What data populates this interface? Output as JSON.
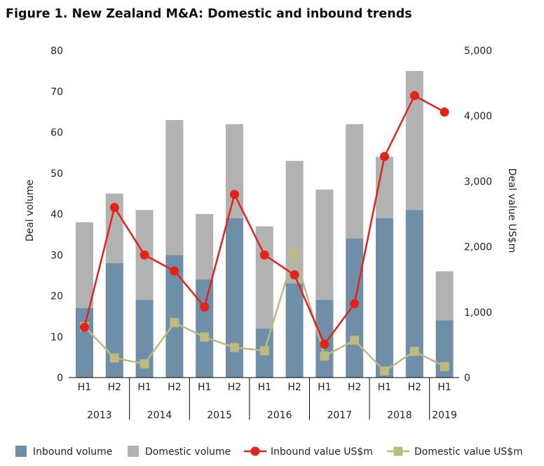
{
  "chart_data": {
    "type": "bar",
    "title": "Figure 1. New Zealand M&A: Domestic and inbound trends",
    "ylabel": "Deal volume",
    "y2label": "Deal value US$m",
    "ylim": [
      0,
      80
    ],
    "y2lim": [
      0,
      5000
    ],
    "yticks": [
      "0",
      "10",
      "20",
      "30",
      "40",
      "50",
      "60",
      "70",
      "80"
    ],
    "y2ticks": [
      "0",
      "1,000",
      "2,000",
      "3,000",
      "4,000",
      "5,000"
    ],
    "categories": [
      "H1",
      "H2",
      "H1",
      "H2",
      "H1",
      "H2",
      "H1",
      "H2",
      "H1",
      "H2",
      "H1",
      "H2",
      "H1"
    ],
    "years": [
      "2013",
      "2014",
      "2015",
      "2016",
      "2017",
      "2018",
      "2019"
    ],
    "series": [
      {
        "name": "Inbound volume",
        "type": "bar",
        "color": "#6f8fa8",
        "values": [
          17,
          28,
          19,
          30,
          24,
          39,
          12,
          23,
          19,
          34,
          39,
          41,
          14
        ]
      },
      {
        "name": "Domestic volume",
        "type": "bar-stacked",
        "color": "#b2b2b2",
        "values": [
          21,
          17,
          22,
          33,
          16,
          23,
          25,
          30,
          27,
          28,
          15,
          34,
          12
        ]
      },
      {
        "name": "Inbound value US$m",
        "type": "line",
        "axis": "right",
        "color": "#e2231a",
        "values": [
          770,
          2600,
          1875,
          1630,
          1080,
          2800,
          1875,
          1570,
          510,
          1130,
          3380,
          4310,
          4060
        ]
      },
      {
        "name": "Domestic value US$m",
        "type": "line",
        "axis": "right",
        "color": "#bdb97f",
        "values": [
          780,
          300,
          210,
          840,
          620,
          460,
          410,
          1910,
          330,
          570,
          100,
          400,
          170
        ]
      }
    ],
    "legend": "bottom"
  }
}
